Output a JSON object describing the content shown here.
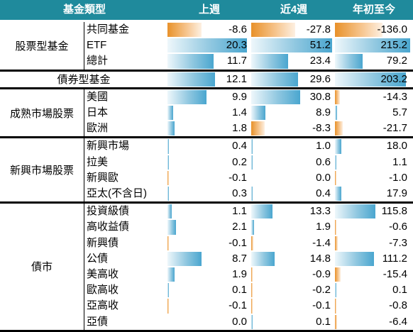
{
  "chart_data": {
    "type": "table",
    "columns": [
      "基金類型",
      "上週",
      "近4週",
      "年初至今"
    ],
    "groups": [
      {
        "category": "股票型基金",
        "rows": [
          {
            "label": "共同基金",
            "values": [
              -8.6,
              -27.8,
              -136.0
            ],
            "display": [
              "-8.6",
              "-27.8",
              "-136.0"
            ]
          },
          {
            "label": "ETF",
            "values": [
              20.3,
              51.2,
              215.2
            ],
            "display": [
              "20.3",
              "51.2",
              "215.2"
            ]
          },
          {
            "label": "總計",
            "values": [
              11.7,
              23.4,
              79.2
            ],
            "display": [
              "11.7",
              "23.4",
              "79.2"
            ]
          }
        ]
      },
      {
        "category": "債券型基金",
        "rows": [
          {
            "label": "",
            "values": [
              12.1,
              29.6,
              203.2
            ],
            "display": [
              "12.1",
              "29.6",
              "203.2"
            ]
          }
        ]
      },
      {
        "category": "成熟市場股票",
        "rows": [
          {
            "label": "美國",
            "values": [
              9.9,
              30.8,
              -14.3
            ],
            "display": [
              "9.9",
              "30.8",
              "-14.3"
            ]
          },
          {
            "label": "日本",
            "values": [
              1.4,
              8.9,
              5.7
            ],
            "display": [
              "1.4",
              "8.9",
              "5.7"
            ]
          },
          {
            "label": "歐洲",
            "values": [
              1.8,
              -8.3,
              -21.7
            ],
            "display": [
              "1.8",
              "-8.3",
              "-21.7"
            ]
          }
        ]
      },
      {
        "category": "新興市場股票",
        "rows": [
          {
            "label": "新興市場",
            "values": [
              0.4,
              1.0,
              18.0
            ],
            "display": [
              "0.4",
              "1.0",
              "18.0"
            ]
          },
          {
            "label": "拉美",
            "values": [
              0.2,
              0.6,
              1.1
            ],
            "display": [
              "0.2",
              "0.6",
              "1.1"
            ]
          },
          {
            "label": "新興歐",
            "values": [
              -0.1,
              0.0,
              -1.0
            ],
            "display": [
              "-0.1",
              "0.0",
              "-1.0"
            ]
          },
          {
            "label": "亞太(不含日)",
            "values": [
              0.3,
              0.4,
              17.9
            ],
            "display": [
              "0.3",
              "0.4",
              "17.9"
            ]
          }
        ]
      },
      {
        "category": "債市",
        "rows": [
          {
            "label": "投資級債",
            "values": [
              1.1,
              13.3,
              115.8
            ],
            "display": [
              "1.1",
              "13.3",
              "115.8"
            ]
          },
          {
            "label": "高收益債",
            "values": [
              2.1,
              1.9,
              -0.6
            ],
            "display": [
              "2.1",
              "1.9",
              "-0.6"
            ]
          },
          {
            "label": "新興債",
            "values": [
              -0.1,
              -1.4,
              -7.3
            ],
            "display": [
              "-0.1",
              "-1.4",
              "-7.3"
            ]
          },
          {
            "label": "公債",
            "values": [
              8.7,
              14.8,
              111.2
            ],
            "display": [
              "8.7",
              "14.8",
              "111.2"
            ]
          },
          {
            "label": "美高收",
            "values": [
              1.9,
              -0.9,
              -15.4
            ],
            "display": [
              "1.9",
              "-0.9",
              "-15.4"
            ]
          },
          {
            "label": "歐高收",
            "values": [
              0.1,
              -0.2,
              0.1
            ],
            "display": [
              "0.1",
              "-0.2",
              "0.1"
            ]
          },
          {
            "label": "亞高收",
            "values": [
              -0.1,
              -0.1,
              -0.8
            ],
            "display": [
              "-0.1",
              "-0.1",
              "-0.8"
            ]
          },
          {
            "label": "亞債",
            "values": [
              0.0,
              0.1,
              -6.4
            ],
            "display": [
              "0.0",
              "0.1",
              "-6.4"
            ]
          }
        ]
      }
    ],
    "bar_colors": {
      "positive": "#4aa6cf",
      "negative": "#e8912a"
    },
    "header_color": "#1f8a9c"
  }
}
